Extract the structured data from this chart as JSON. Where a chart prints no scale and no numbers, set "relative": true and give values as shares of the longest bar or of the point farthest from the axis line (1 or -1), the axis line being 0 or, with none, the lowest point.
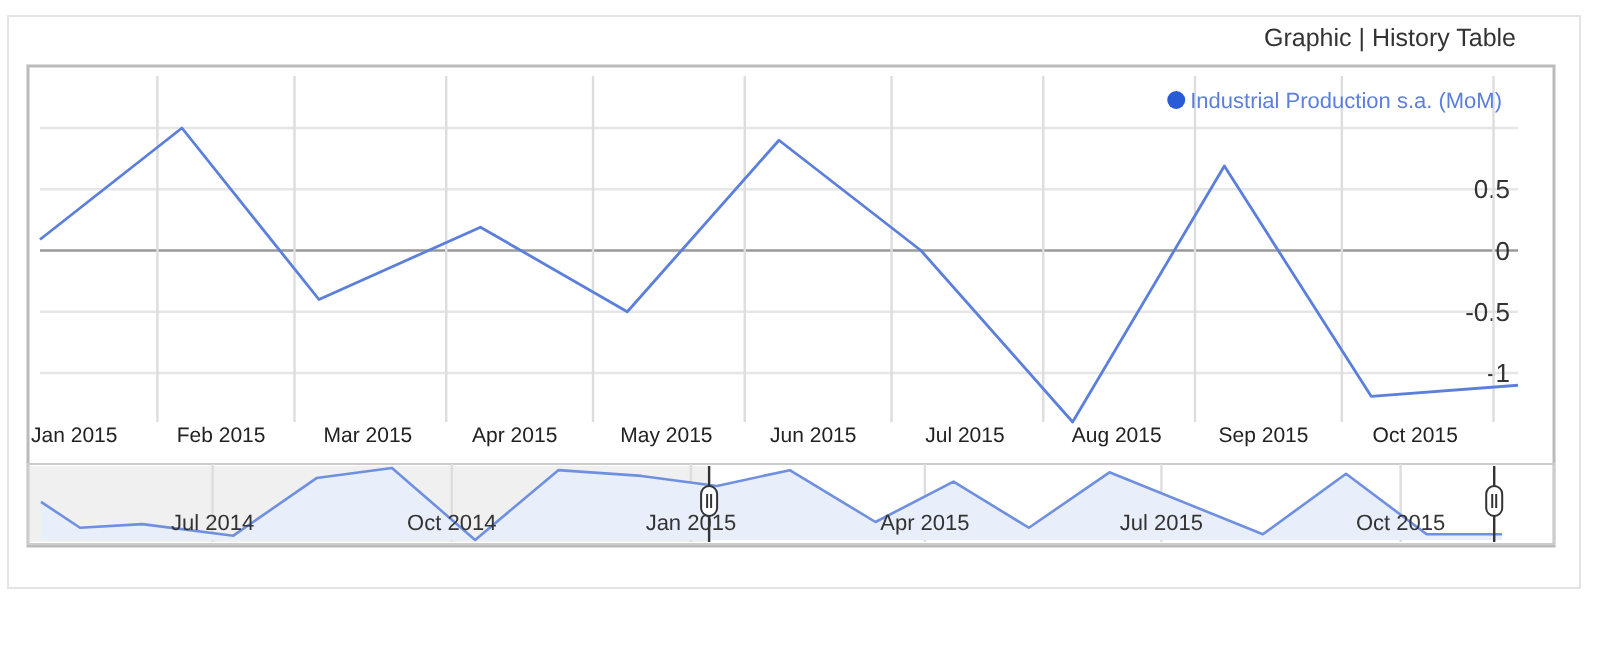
{
  "chart_data": [
    {
      "type": "line",
      "annotations": [
        "Graphic | History Table"
      ],
      "legend": "top right",
      "grid": true,
      "xlim": [
        "2015-01-08",
        "2015-11-06"
      ],
      "xticks": [
        {
          "value": "2015-01-15",
          "label": "Jan 2015"
        },
        {
          "value": "2015-02-01",
          "label": null
        },
        {
          "value": "2015-02-14",
          "label": "Feb 2015"
        },
        {
          "value": "2015-03-01",
          "label": null
        },
        {
          "value": "2015-03-16",
          "label": "Mar 2015"
        },
        {
          "value": "2015-04-01",
          "label": null
        },
        {
          "value": "2015-04-15",
          "label": "Apr 2015"
        },
        {
          "value": "2015-05-01",
          "label": null
        },
        {
          "value": "2015-05-16",
          "label": "May 2015"
        },
        {
          "value": "2015-06-01",
          "label": null
        },
        {
          "value": "2015-06-15",
          "label": "Jun 2015"
        },
        {
          "value": "2015-07-01",
          "label": null
        },
        {
          "value": "2015-07-16",
          "label": "Jul 2015"
        },
        {
          "value": "2015-08-01",
          "label": null
        },
        {
          "value": "2015-08-16",
          "label": "Aug 2015"
        },
        {
          "value": "2015-09-01",
          "label": null
        },
        {
          "value": "2015-09-15",
          "label": "Sep 2015"
        },
        {
          "value": "2015-10-01",
          "label": null
        },
        {
          "value": "2015-10-16",
          "label": "Oct 2015"
        },
        {
          "value": "2015-11-01",
          "label": null
        }
      ],
      "ylim": [
        -1.4,
        1
      ],
      "yticks": [
        {
          "value": 1,
          "label": null
        },
        0.5,
        0,
        -0.5,
        -1
      ],
      "x": [
        "2015-01-08",
        "2015-02-06",
        "2015-03-06",
        "2015-04-08",
        "2015-05-08",
        "2015-06-08",
        "2015-07-07",
        "2015-08-07",
        "2015-09-07",
        "2015-10-07",
        "2015-11-06"
      ],
      "series": [
        {
          "name": "Industrial Production s.a. (MoM)",
          "color": "#5b7fdb",
          "values": [
            0.09,
            1.0,
            -0.4,
            0.19,
            -0.5,
            0.9,
            0.0,
            -1.4,
            0.69,
            -1.19,
            -1.1
          ]
        }
      ]
    },
    {
      "type": "area",
      "relative": true,
      "grid": "x",
      "xlim": [
        "2014-04-21",
        "2015-11-29"
      ],
      "xticks": [
        {
          "value": "2014-07-01",
          "label": "Jul 2014"
        },
        {
          "value": "2014-10-01",
          "label": "Oct 2014"
        },
        {
          "value": "2015-01-01",
          "label": "Jan 2015"
        },
        {
          "value": "2015-04-01",
          "label": "Apr 2015"
        },
        {
          "value": "2015-07-01",
          "label": "Jul 2015"
        },
        {
          "value": "2015-10-01",
          "label": "Oct 2015"
        }
      ],
      "x": [
        "2014-04-26",
        "2014-05-11",
        "2014-06-04",
        "2014-07-09",
        "2014-08-10",
        "2014-09-08",
        "2014-10-10",
        "2014-11-11",
        "2014-12-13",
        "2015-01-11",
        "2015-02-08",
        "2015-03-13",
        "2015-04-12",
        "2015-05-11",
        "2015-06-11",
        "2015-08-09",
        "2015-09-10",
        "2015-10-11",
        "2015-11-09"
      ],
      "series": [
        {
          "color": "#6f8fe0",
          "values": [
            0.53,
            0.17,
            0.22,
            0.06,
            0.86,
            1,
            0,
            0.97,
            0.89,
            0.75,
            0.97,
            0.25,
            0.81,
            0.17,
            0.94,
            0.08,
            0.92,
            0.08,
            0.08
          ]
        }
      ]
    }
  ]
}
